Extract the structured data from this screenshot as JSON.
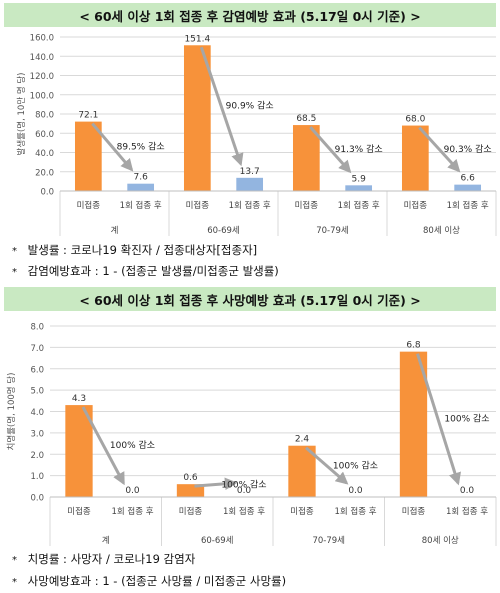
{
  "top": {
    "title": "< 60세 이상 1회 접종 후 감염예방 효과 (5.17일 0시 기준) >",
    "notes": [
      {
        "mark": "*",
        "text": "발생률 : 코로나19 확진자 / 접종대상자[접종자]"
      },
      {
        "mark": "*",
        "text": "감염예방효과 : 1 - (접종군 발생률/미접종군 발생률)"
      }
    ]
  },
  "bottom": {
    "title": "< 60세 이상 1회 접종 후 사망예방 효과 (5.17일 0시 기준) >",
    "notes": [
      {
        "mark": "*",
        "text": "치명률 : 사망자 / 코로나19 감염자"
      },
      {
        "mark": "*",
        "text": "사망예방효과 : 1 - (접종군 사망률 / 미접종군 사망률)"
      }
    ]
  },
  "colors": {
    "unvaccinated": "#f7923a",
    "vaccinated": "#93b5e0",
    "arrow": "#a6a6a6",
    "banner": "#c9e9c2"
  },
  "chart_data": [
    {
      "type": "bar",
      "ylabel": "발생률(명, 10만 명 당)",
      "ylim": [
        0,
        160
      ],
      "yticks": [
        "0.0",
        "20.0",
        "40.0",
        "60.0",
        "80.0",
        "100.0",
        "120.0",
        "140.0",
        "160.0"
      ],
      "bar_labels": [
        "미접종",
        "1회 접종 후"
      ],
      "groups": [
        {
          "name": "계",
          "unvaccinated": 72.1,
          "vaccinated": 7.6,
          "unvaccinated_label": "72.1",
          "vaccinated_label": "7.6",
          "effect": "89.5% 감소"
        },
        {
          "name": "60-69세",
          "unvaccinated": 151.4,
          "vaccinated": 13.7,
          "unvaccinated_label": "151.4",
          "vaccinated_label": "13.7",
          "effect": "90.9% 감소"
        },
        {
          "name": "70-79세",
          "unvaccinated": 68.5,
          "vaccinated": 5.9,
          "unvaccinated_label": "68.5",
          "vaccinated_label": "5.9",
          "effect": "91.3% 감소"
        },
        {
          "name": "80세 이상",
          "unvaccinated": 68.0,
          "vaccinated": 6.6,
          "unvaccinated_label": "68.0",
          "vaccinated_label": "6.6",
          "effect": "90.3% 감소"
        }
      ]
    },
    {
      "type": "bar",
      "ylabel": "치명률(명, 100명 당)",
      "ylim": [
        0,
        8
      ],
      "yticks": [
        "0.0",
        "1.0",
        "2.0",
        "3.0",
        "4.0",
        "5.0",
        "6.0",
        "7.0",
        "8.0"
      ],
      "bar_labels": [
        "미접종",
        "1회 접종 후"
      ],
      "groups": [
        {
          "name": "계",
          "unvaccinated": 4.3,
          "vaccinated": 0.0,
          "unvaccinated_label": "4.3",
          "vaccinated_label": "0.0",
          "effect": "100% 감소"
        },
        {
          "name": "60-69세",
          "unvaccinated": 0.6,
          "vaccinated": 0.0,
          "unvaccinated_label": "0.6",
          "vaccinated_label": "0.0",
          "effect": "100% 감소"
        },
        {
          "name": "70-79세",
          "unvaccinated": 2.4,
          "vaccinated": 0.0,
          "unvaccinated_label": "2.4",
          "vaccinated_label": "0.0",
          "effect": "100% 감소"
        },
        {
          "name": "80세 이상",
          "unvaccinated": 6.8,
          "vaccinated": 0.0,
          "unvaccinated_label": "6.8",
          "vaccinated_label": "0.0",
          "effect": "100% 감소"
        }
      ]
    }
  ]
}
